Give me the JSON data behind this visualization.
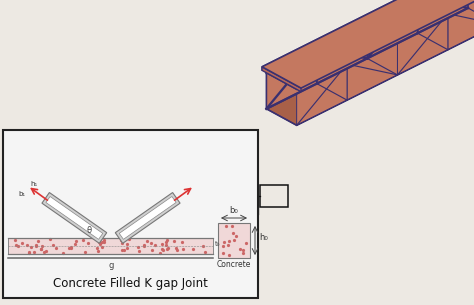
{
  "bg_color": "#ede9e3",
  "truss_face_color": "#c47860",
  "truss_dark_color": "#a86048",
  "truss_edge_color": "#3a3070",
  "truss_edge_width": 1.2,
  "detail_box_bg": "#f5f5f5",
  "detail_box_edge": "#222222",
  "concrete_color": "#f0d8d8",
  "chord_color": "#999999",
  "arrow_color": "#dd3333",
  "dim_color": "#444444",
  "title_text": "Concrete Filled K gap Joint",
  "concrete_label": "Concrete",
  "label_b0": "b₀",
  "label_h0": "h₀",
  "label_t0": "t₀",
  "label_g": "g",
  "label_b1": "b₁",
  "label_h1": "h₁",
  "label_theta": "θ",
  "figure_width": 4.74,
  "figure_height": 3.05,
  "dpi": 100
}
